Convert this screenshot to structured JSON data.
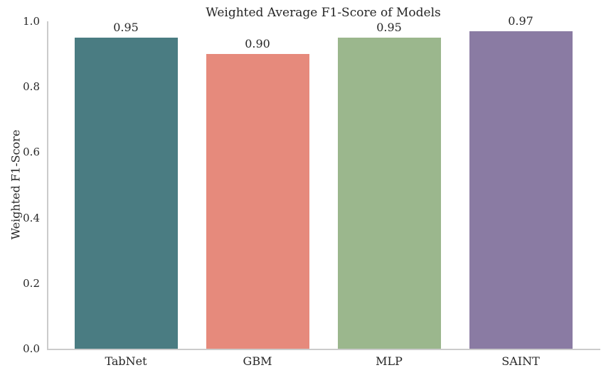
{
  "chart_data": {
    "type": "bar",
    "title": "Weighted Average F1-Score of Models",
    "xlabel": "",
    "ylabel": "Weighted F1-Score",
    "categories": [
      "TabNet",
      "GBM",
      "MLP",
      "SAINT"
    ],
    "values": [
      0.95,
      0.9,
      0.95,
      0.97
    ],
    "value_labels": [
      "0.95",
      "0.90",
      "0.95",
      "0.97"
    ],
    "bar_colors": [
      "#4a7c82",
      "#e68a7c",
      "#9bb78d",
      "#8a7ba3"
    ],
    "ylim": [
      0.0,
      1.0
    ],
    "yticks": [
      0.0,
      0.2,
      0.4,
      0.6,
      0.8,
      1.0
    ],
    "ytick_labels": [
      "0.0",
      "0.2",
      "0.4",
      "0.6",
      "0.8",
      "1.0"
    ],
    "grid": false,
    "legend_position": "none",
    "text_color": "#262626",
    "spine_color": "#cbcbcb",
    "background_color": "#ffffff"
  }
}
